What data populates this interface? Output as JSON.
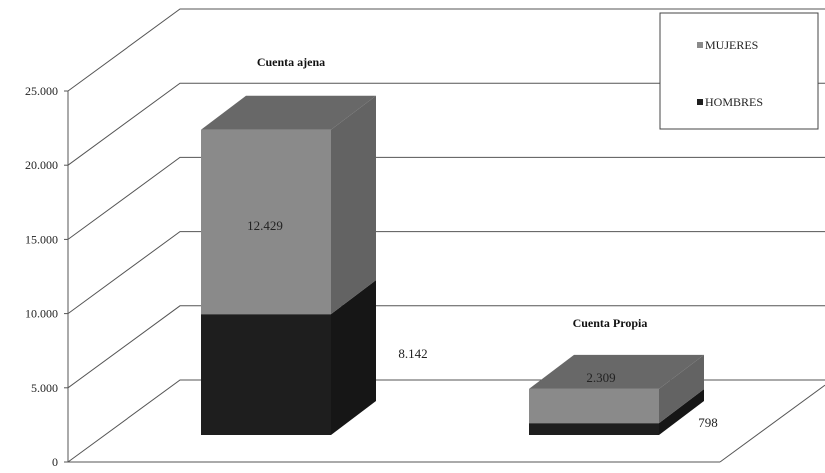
{
  "chart_data": {
    "type": "bar",
    "stacked": true,
    "three_d": true,
    "categories": [
      "Cuenta ajena",
      "Cuenta Propia"
    ],
    "series": [
      {
        "name": "HOMBRES",
        "values": [
          8142,
          798
        ],
        "labels": [
          "8.142",
          "798"
        ],
        "color": "#1e1e1e"
      },
      {
        "name": "MUJERES",
        "values": [
          12429,
          2309
        ],
        "labels": [
          "12.429",
          "2.309"
        ],
        "color": "#8a8a8a"
      }
    ],
    "ylim": [
      0,
      25000
    ],
    "yticks": [
      0,
      5000,
      10000,
      15000,
      20000,
      25000
    ],
    "ytick_labels": [
      "0",
      "5.000",
      "10.000",
      "15.000",
      "20.000",
      "25.000"
    ],
    "grid": true,
    "legend": {
      "position": "top-right",
      "entries": [
        "MUJERES",
        "HOMBRES"
      ]
    }
  }
}
